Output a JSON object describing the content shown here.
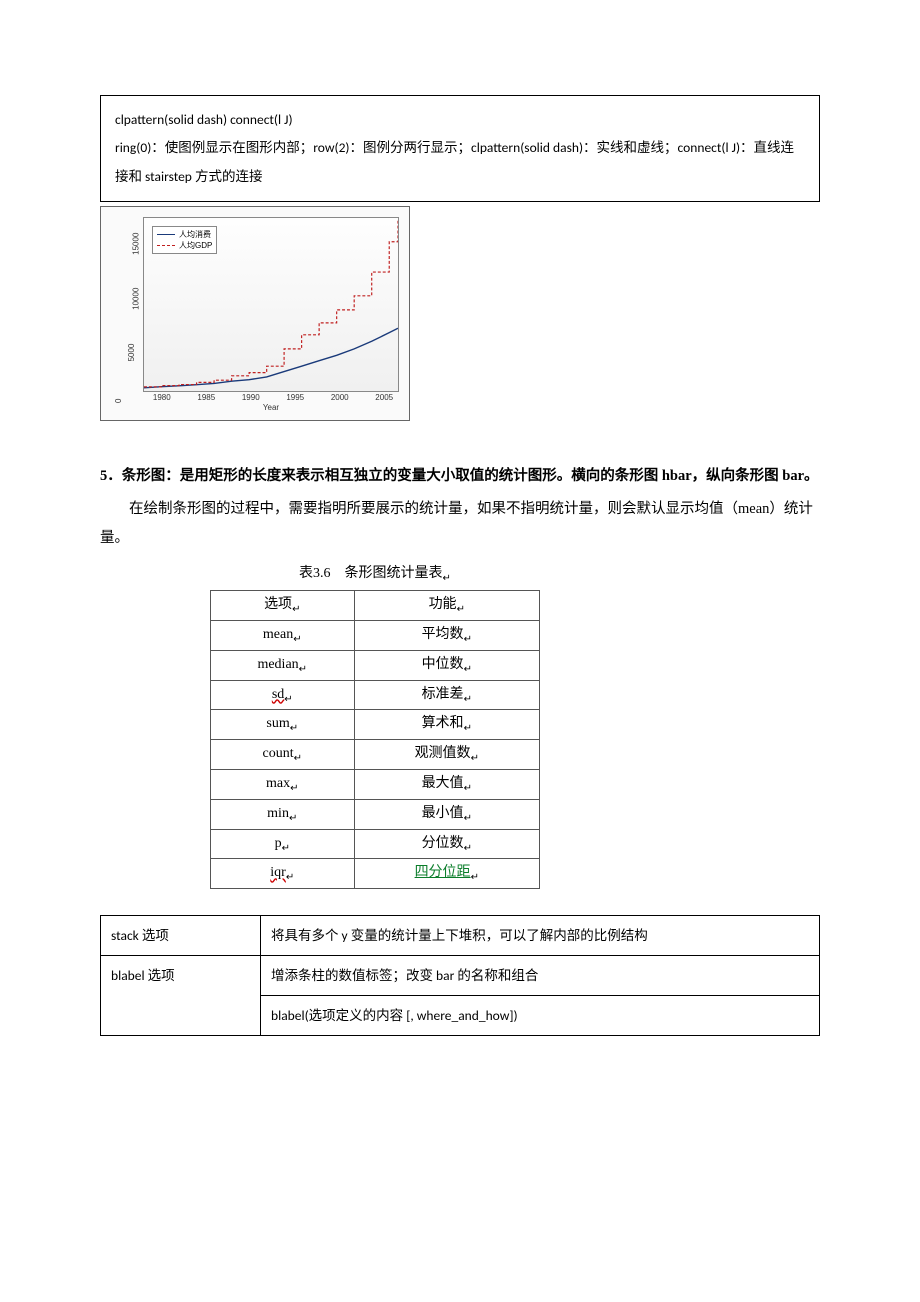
{
  "codebox": {
    "line1": "clpattern(solid dash) connect(l J)",
    "line2": "ring(0)：使图例显示在图形内部；row(2)：图例分两行显示；clpattern(solid dash)：实线和虚线；connect(l J)：直线连接和 stairstep 方式的连接"
  },
  "chart": {
    "type": "line",
    "background_color": "#fafafa",
    "plot_bg": "#fdfdfd",
    "xlabel": "Year",
    "xlim": [
      1978,
      2007
    ],
    "xticks": [
      1980,
      1985,
      1990,
      1995,
      2000,
      2005
    ],
    "ylim": [
      0,
      16000
    ],
    "yticks": [
      0,
      5000,
      10000,
      15000
    ],
    "legend": {
      "items": [
        {
          "label": "人均消费",
          "style": "solid",
          "color": "#1a3a7a"
        },
        {
          "label": "人均GDP",
          "style": "dash",
          "color": "#c02020"
        }
      ]
    },
    "series": [
      {
        "name": "人均消费",
        "color": "#1a3a7a",
        "style": "solid",
        "connect": "line",
        "x": [
          1978,
          1980,
          1982,
          1984,
          1986,
          1988,
          1990,
          1992,
          1994,
          1996,
          1998,
          2000,
          2002,
          2004,
          2006,
          2007
        ],
        "y": [
          300,
          400,
          480,
          580,
          700,
          900,
          1050,
          1300,
          1800,
          2300,
          2800,
          3300,
          3900,
          4600,
          5400,
          5800
        ]
      },
      {
        "name": "人均GDP",
        "color": "#c02020",
        "style": "dash",
        "connect": "stairstep",
        "x": [
          1978,
          1980,
          1982,
          1984,
          1986,
          1988,
          1990,
          1992,
          1994,
          1996,
          1998,
          2000,
          2002,
          2004,
          2006,
          2007
        ],
        "y": [
          380,
          500,
          600,
          800,
          1000,
          1400,
          1700,
          2300,
          3900,
          5200,
          6300,
          7500,
          8800,
          11000,
          13800,
          15800
        ]
      }
    ]
  },
  "section5": {
    "heading": "5．条形图：是用矩形的长度来表示相互独立的变量大小取值的统计图形。横向的条形图 hbar，纵向条形图 bar。",
    "para": "在绘制条形图的过程中，需要指明所要展示的统计量，如果不指明统计量，则会默认显示均值（mean）统计量。"
  },
  "stat_table": {
    "caption": "表3.6　条形图统计量表",
    "columns": [
      "选项",
      "功能"
    ],
    "rows": [
      [
        "mean",
        "平均数"
      ],
      [
        "median",
        "中位数"
      ],
      [
        "sd",
        "标准差"
      ],
      [
        "sum",
        "算术和"
      ],
      [
        "count",
        "观测值数"
      ],
      [
        "max",
        "最大值"
      ],
      [
        "min",
        "最小值"
      ],
      [
        "p",
        "分位数"
      ],
      [
        "iqr",
        "四分位距"
      ]
    ],
    "wavy_rows": [
      2,
      8
    ],
    "green_row": 8
  },
  "opts_table": {
    "rows": [
      {
        "key": "stack 选项",
        "val": "将具有多个 y 变量的统计量上下堆积，可以了解内部的比例结构"
      },
      {
        "key": "blabel 选项",
        "val": "增添条柱的数值标签；改变 bar 的名称和组合\nblabel(选项定义的内容  [, where_and_how])"
      }
    ]
  }
}
